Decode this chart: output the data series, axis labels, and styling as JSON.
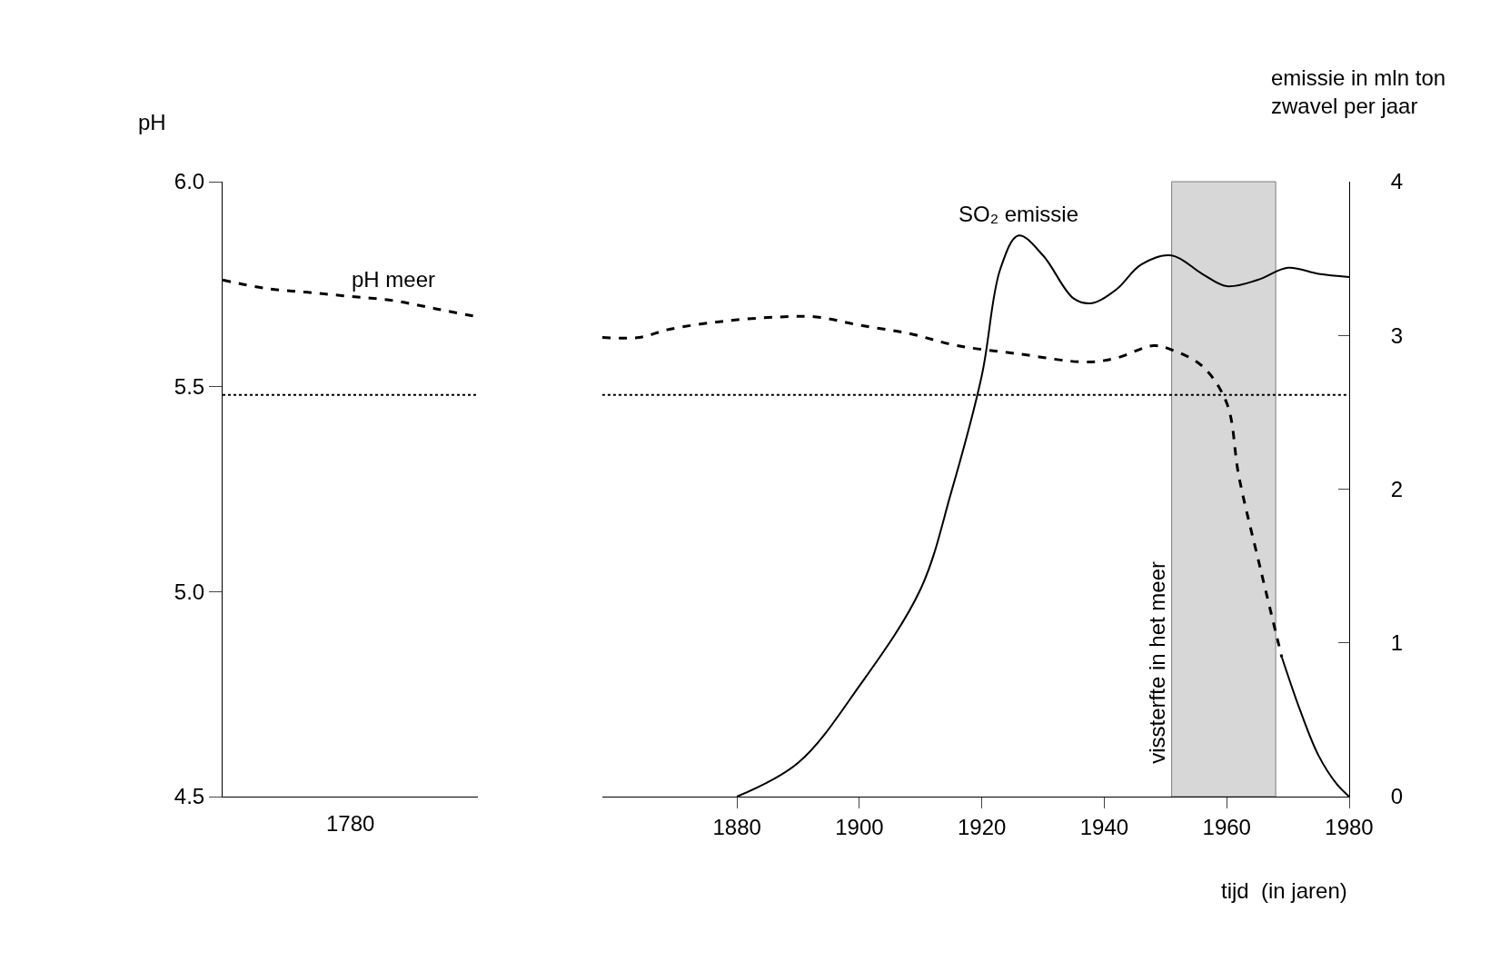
{
  "chart_data": [
    {
      "type": "line",
      "ylabel": "pH",
      "categories": [
        null,
        null,
        null,
        null,
        null,
        null,
        null
      ],
      "annotations": [
        "1780"
      ],
      "ylim": [
        4.5,
        6.0
      ],
      "yticks": [
        4.5,
        {
          "value": 5,
          "label": "5.0"
        },
        5.5,
        {
          "value": 6,
          "label": "6.0"
        }
      ],
      "grid": false,
      "legend": false,
      "marker": "none",
      "ref_lines": [
        {
          "axis": "y",
          "value": 5.48,
          "line_style": "dotted",
          "color": "#000000"
        }
      ],
      "series": [
        {
          "name": "pH meer",
          "color": "#000000",
          "line_style": "dashed",
          "values": [
            5.76,
            5.74,
            5.73,
            5.72,
            5.71,
            5.69,
            5.67
          ]
        }
      ]
    },
    {
      "type": "line",
      "xlabel": "tijd  (in jaren)",
      "y2label": "emissie in mln ton\nzwavel per jaar",
      "xlim": [
        1858,
        1980
      ],
      "xticks": [
        1880,
        1900,
        1920,
        1940,
        1960,
        1980
      ],
      "ylim": [
        4.5,
        6.0
      ],
      "y2lim": [
        0,
        4
      ],
      "y2ticks": [
        0,
        1,
        2,
        3,
        4
      ],
      "grid": false,
      "legend": false,
      "marker": "none",
      "ref_lines": [
        {
          "axis": "y",
          "value": 5.48,
          "line_style": "dotted",
          "color": "#000000"
        }
      ],
      "bands": [
        {
          "axis": "x",
          "from": 1951,
          "to": 1968,
          "label": "vissterfte in het meer",
          "color": "#b0b0b0"
        }
      ],
      "series": [
        {
          "color": "#000000",
          "line_style": "dashed",
          "x": [
            1858,
            1864,
            1869,
            1878,
            1887,
            1893,
            1900,
            1908,
            1916,
            1926,
            1937,
            1942,
            1948,
            1951,
            1956,
            1960,
            1962,
            1965.6,
            1969
          ],
          "values": [
            5.62,
            5.62,
            5.64,
            5.66,
            5.67,
            5.67,
            5.65,
            5.63,
            5.6,
            5.58,
            5.56,
            5.57,
            5.6,
            5.59,
            5.55,
            5.46,
            5.28,
            5.05,
            4.84
          ]
        },
        {
          "color": "#000000",
          "line_style": "solid",
          "x": [
            1969,
            1972,
            1975,
            1978,
            1980
          ],
          "values": [
            4.84,
            4.71,
            4.6,
            4.53,
            4.5
          ]
        },
        {
          "name": "SO₂ emissie",
          "axis": "y2",
          "color": "#000000",
          "line_style": "solid",
          "x": [
            1880,
            1890,
            1900,
            1910,
            1915,
            1920,
            1923,
            1926,
            1930,
            1935,
            1938,
            1942,
            1946,
            1951,
            1956,
            1960,
            1965,
            1970,
            1975,
            1980
          ],
          "values": [
            0,
            0.22,
            0.72,
            1.35,
            1.98,
            2.74,
            3.43,
            3.65,
            3.52,
            3.24,
            3.21,
            3.3,
            3.46,
            3.52,
            3.4,
            3.32,
            3.36,
            3.44,
            3.4,
            3.38
          ]
        }
      ]
    }
  ]
}
